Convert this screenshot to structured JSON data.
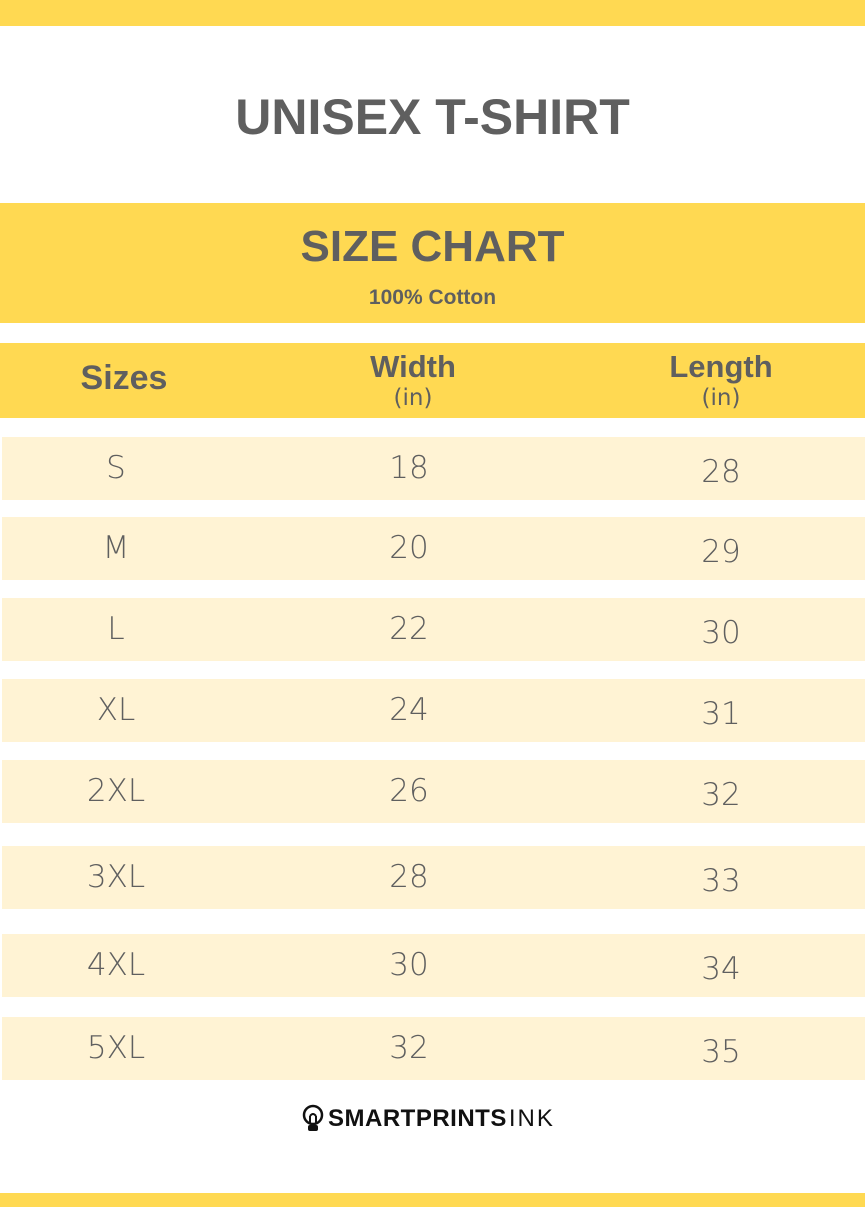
{
  "title": "UNISEX T-SHIRT",
  "banner": {
    "title": "SIZE CHART",
    "subtitle": "100% Cotton"
  },
  "columns": [
    {
      "label": "Sizes"
    },
    {
      "label": "Width",
      "unit": "(in)"
    },
    {
      "label": "Length",
      "unit": "(in)"
    }
  ],
  "rows": [
    {
      "size": "S",
      "width": "18",
      "length": "28"
    },
    {
      "size": "M",
      "width": "20",
      "length": "29"
    },
    {
      "size": "L",
      "width": "22",
      "length": "30"
    },
    {
      "size": "XL",
      "width": "24",
      "length": "31"
    },
    {
      "size": "2XL",
      "width": "26",
      "length": "32"
    },
    {
      "size": "3XL",
      "width": "28",
      "length": "33"
    },
    {
      "size": "4XL",
      "width": "30",
      "length": "34"
    },
    {
      "size": "5XL",
      "width": "32",
      "length": "35"
    }
  ],
  "logo": {
    "bold": "SMARTPRINTS",
    "light": "INK",
    "icon": "lightbulb-icon"
  },
  "colors": {
    "accent": "#FFD952",
    "row": "#FFF3D4",
    "text": "#5f5f5f"
  }
}
